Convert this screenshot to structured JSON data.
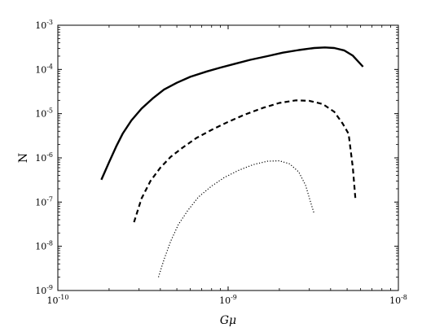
{
  "chart_data": {
    "type": "line",
    "title": "",
    "xlabel": "Gμ",
    "ylabel": "N",
    "x_scale": "log",
    "y_scale": "log",
    "xlim": [
      1e-10,
      1e-08
    ],
    "ylim": [
      1e-09,
      0.001
    ],
    "x_ticks": [
      1e-10,
      1e-09,
      1e-08
    ],
    "y_ticks": [
      1e-09,
      1e-08,
      1e-07,
      1e-06,
      1e-05,
      0.0001,
      0.001
    ],
    "grid": false,
    "legend": "none",
    "series": [
      {
        "style": "solid",
        "x": [
          1.8e-10,
          2e-10,
          2.2e-10,
          2.4e-10,
          2.7e-10,
          3.1e-10,
          3.6e-10,
          4.2e-10,
          5e-10,
          6e-10,
          7.5e-10,
          9e-10,
          1.1e-09,
          1.35e-09,
          1.7e-09,
          2.1e-09,
          2.6e-09,
          3.2e-09,
          3.7e-09,
          4.2e-09,
          4.8e-09,
          5.4e-09,
          6.2e-09
        ],
        "y": [
          3.2e-07,
          8e-07,
          1.8e-06,
          3.5e-06,
          7e-06,
          1.3e-05,
          2.2e-05,
          3.5e-05,
          5e-05,
          6.8e-05,
          9e-05,
          0.00011,
          0.000135,
          0.000165,
          0.0002,
          0.00024,
          0.000275,
          0.000305,
          0.000315,
          0.000305,
          0.00027,
          0.000205,
          0.000115
        ]
      },
      {
        "style": "dashed",
        "x": [
          2.8e-10,
          3.1e-10,
          3.5e-10,
          4e-10,
          4.6e-10,
          5.4e-10,
          6.5e-10,
          8e-10,
          1e-09,
          1.25e-09,
          1.6e-09,
          2e-09,
          2.5e-09,
          3e-09,
          3.6e-09,
          4.2e-09,
          4.7e-09,
          5.1e-09,
          5.4e-09,
          5.6e-09
        ],
        "y": [
          3.5e-08,
          1.2e-07,
          3e-07,
          6e-07,
          1.05e-06,
          1.7e-06,
          2.8e-06,
          4.3e-06,
          6.5e-06,
          9.5e-06,
          1.35e-05,
          1.75e-05,
          2e-05,
          1.95e-05,
          1.65e-05,
          1.1e-05,
          6e-06,
          3.5e-06,
          6e-07,
          1.1e-07
        ]
      },
      {
        "style": "dotted",
        "x": [
          3.9e-10,
          4.2e-10,
          4.6e-10,
          5.1e-10,
          5.8e-10,
          6.7e-10,
          8e-10,
          9.5e-10,
          1.15e-09,
          1.4e-09,
          1.7e-09,
          2e-09,
          2.3e-09,
          2.6e-09,
          2.85e-09,
          3.05e-09,
          3.2e-09
        ],
        "y": [
          2e-09,
          5e-09,
          1.3e-08,
          3.1e-08,
          6.5e-08,
          1.3e-07,
          2.3e-07,
          3.6e-07,
          5.2e-07,
          7e-07,
          8.4e-07,
          8.6e-07,
          7.3e-07,
          4.8e-07,
          2.4e-07,
          1e-07,
          5.5e-08
        ]
      }
    ]
  }
}
